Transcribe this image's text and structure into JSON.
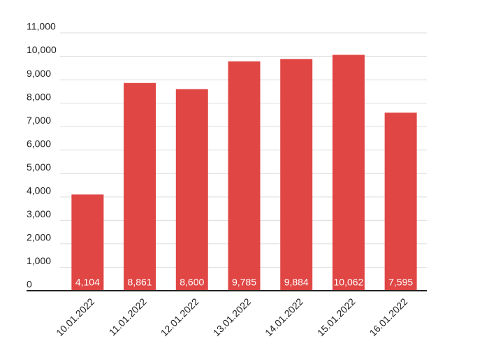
{
  "chart_data": {
    "type": "bar",
    "categories": [
      "10.01.2022",
      "11.01.2022",
      "12.01.2022",
      "13.01.2022",
      "14.01.2022",
      "15.01.2022",
      "16.01.2022"
    ],
    "values": [
      4104,
      8861,
      8600,
      9785,
      9884,
      10062,
      7595
    ],
    "value_labels": [
      "4,104",
      "8,861",
      "8,600",
      "9,785",
      "9,884",
      "10,062",
      "7,595"
    ],
    "color": "#e04644",
    "ylim": [
      0,
      11000
    ],
    "yticks": [
      0,
      {
        "value": 1000,
        "label": "1,000"
      },
      {
        "value": 2000,
        "label": "2,000"
      },
      {
        "value": 3000,
        "label": "3,000"
      },
      {
        "value": 4000,
        "label": "4,000"
      },
      {
        "value": 5000,
        "label": "5,000"
      },
      {
        "value": 6000,
        "label": "6,000"
      },
      {
        "value": 7000,
        "label": "7,000"
      },
      {
        "value": 8000,
        "label": "8,000"
      },
      {
        "value": 9000,
        "label": "9,000"
      },
      {
        "value": 10000,
        "label": "10,000"
      },
      {
        "value": 11000,
        "label": "11,000"
      }
    ],
    "grid": true
  }
}
